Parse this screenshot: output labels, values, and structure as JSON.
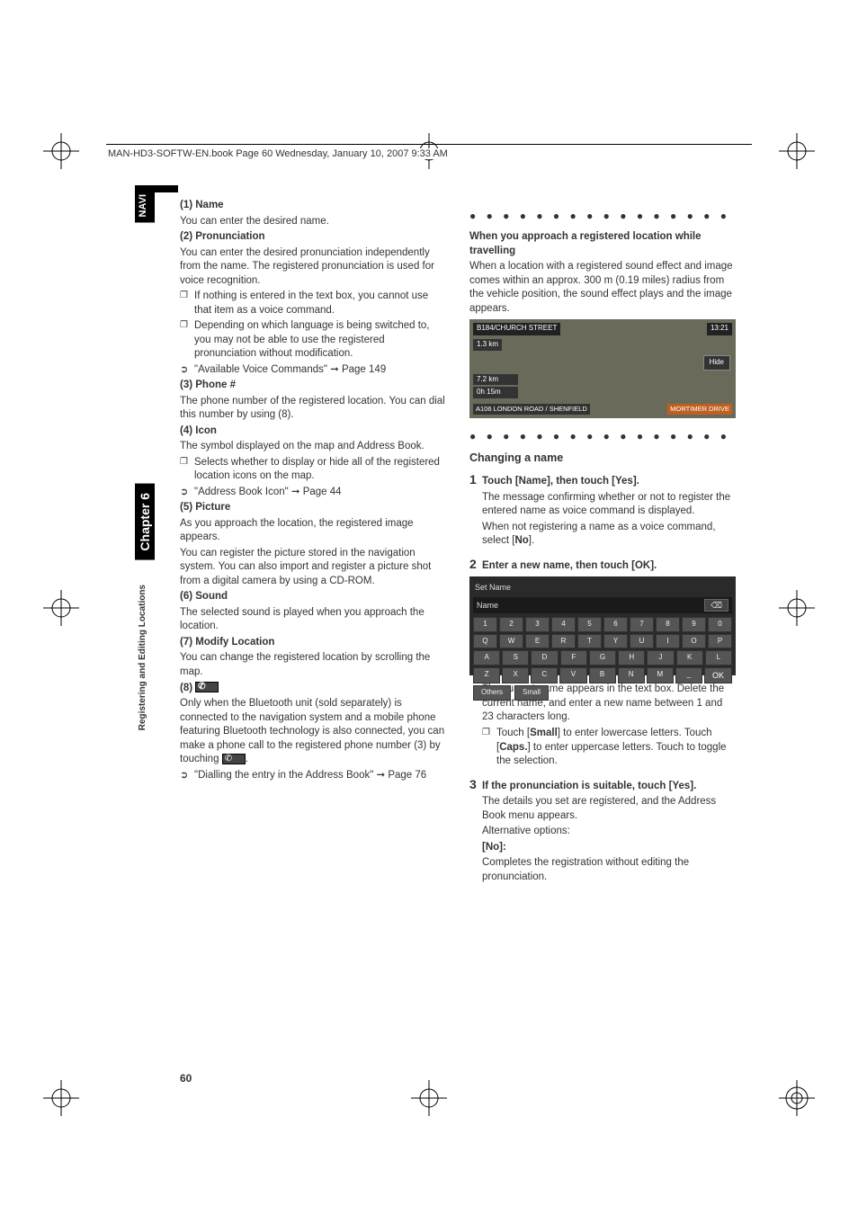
{
  "header": {
    "running_head": "MAN-HD3-SOFTW-EN.book  Page 60  Wednesday, January 10, 2007  9:33 AM"
  },
  "side": {
    "navi": "NAVI",
    "chapter": "Chapter 6",
    "section": "Registering and Editing Locations"
  },
  "page_number": "60",
  "left": {
    "h1": "(1) Name",
    "p1": "You can enter the desired name.",
    "h2": "(2) Pronunciation",
    "p2": "You can enter the desired pronunciation independently from the name. The registered pronunciation is used for voice recognition.",
    "b2a": "If nothing is entered in the text box, you cannot use that item as a voice command.",
    "b2b": "Depending on which language is being switched to, you may not be able to use the registered pronunciation without modification.",
    "ref2": "\"Available Voice Commands\" ➞ Page 149",
    "h3": "(3) Phone #",
    "p3": "The phone number of the registered location. You can dial this number by using (8).",
    "h4": "(4) Icon",
    "p4": "The symbol displayed on the map and Address Book.",
    "b4a": "Selects whether to display or hide all of the registered location icons on the map.",
    "ref4": "\"Address Book Icon\" ➞ Page 44",
    "h5": "(5) Picture",
    "p5a": "As you approach the location, the registered image appears.",
    "p5b": "You can register the picture stored in the navigation system. You can also import and register a picture shot from a digital camera by using a CD-ROM.",
    "h6": "(6) Sound",
    "p6": "The selected sound is played when you approach the location.",
    "h7": "(7) Modify Location",
    "p7": "You can change the registered location by scrolling the map.",
    "h8": "(8)",
    "p8a": "Only when the Bluetooth unit (sold separately) is connected to the navigation system and a mobile phone featuring Bluetooth technology is also connected, you can make a phone call to the registered phone number (3) by touching ",
    "p8b": ".",
    "ref8": "\"Dialling the entry in the Address Book\" ➞ Page 76"
  },
  "right": {
    "box_title": "When you approach a registered location while travelling",
    "box_body": "When a location with a registered sound effect and image comes within an approx. 300 m (0.19 miles) radius from the vehicle position, the sound effect plays and the image appears.",
    "map": {
      "road": "B184/CHURCH STREET",
      "time": "13:21",
      "dist": "1.3 km",
      "hide": "Hide",
      "stat1": "7.2 km",
      "stat2": "0h 15m",
      "bottom_left": "A106  LONDON ROAD / SHENFIELD",
      "bottom_right": "MORTIMER DRIVE"
    },
    "change_title": "Changing a name",
    "s1_head": "Touch [Name], then touch [Yes].",
    "s1_body1": "The message confirming whether or not to register the entered name as voice command is displayed.",
    "s1_body2a": "When not registering a name as a voice command, select [",
    "s1_body2b": "No",
    "s1_body2c": "].",
    "s2_head": "Enter a new name, then touch [OK].",
    "kb": {
      "title": "Set Name",
      "name_label": "Name",
      "del": "⌫",
      "r1": [
        "1",
        "2",
        "3",
        "4",
        "5",
        "6",
        "7",
        "8",
        "9",
        "0"
      ],
      "r2": [
        "Q",
        "W",
        "E",
        "R",
        "T",
        "Y",
        "U",
        "I",
        "O",
        "P"
      ],
      "r3": [
        "A",
        "S",
        "D",
        "F",
        "G",
        "H",
        "J",
        "K",
        "L"
      ],
      "r4": [
        "Z",
        "X",
        "C",
        "V",
        "B",
        "N",
        "M",
        "_"
      ],
      "ok": "OK",
      "others": "Others",
      "small": "Small"
    },
    "s2_body1": "The current name appears in the text box. Delete the current name, and enter a new name between 1 and 23 characters long.",
    "s2_b1a": "Touch [",
    "s2_b1b": "Small",
    "s2_b1c": "] to enter lowercase letters. Touch [",
    "s2_b1d": "Caps.",
    "s2_b1e": "] to enter uppercase letters. Touch to toggle the selection.",
    "s3_head": "If the pronunciation is suitable, touch [Yes].",
    "s3_body1": "The details you set are registered, and the Address Book menu appears.",
    "s3_alt": "Alternative options:",
    "s3_no": "[No]:",
    "s3_no_body": "Completes the registration without editing the pronunciation."
  }
}
